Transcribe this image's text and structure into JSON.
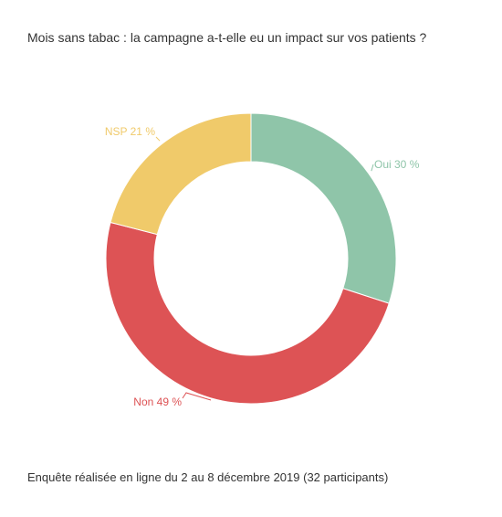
{
  "title": "Mois sans tabac : la campagne a-t-elle eu un impact sur vos patients ?",
  "footer": "Enquête réalisée en ligne du 2 au 8 décembre 2019 (32 participants)",
  "chart_data": {
    "type": "pie",
    "donut": true,
    "title": "Mois sans tabac : la campagne a-t-elle eu un impact sur vos patients ?",
    "slices": [
      {
        "label": "Oui",
        "value": 30,
        "display": "Oui 30 %",
        "color": "#8fc5a9"
      },
      {
        "label": "Non",
        "value": 49,
        "display": "Non 49 %",
        "color": "#dd5355"
      },
      {
        "label": "NSP",
        "value": 21,
        "display": "NSP 21 %",
        "color": "#f0ca6a"
      }
    ]
  }
}
